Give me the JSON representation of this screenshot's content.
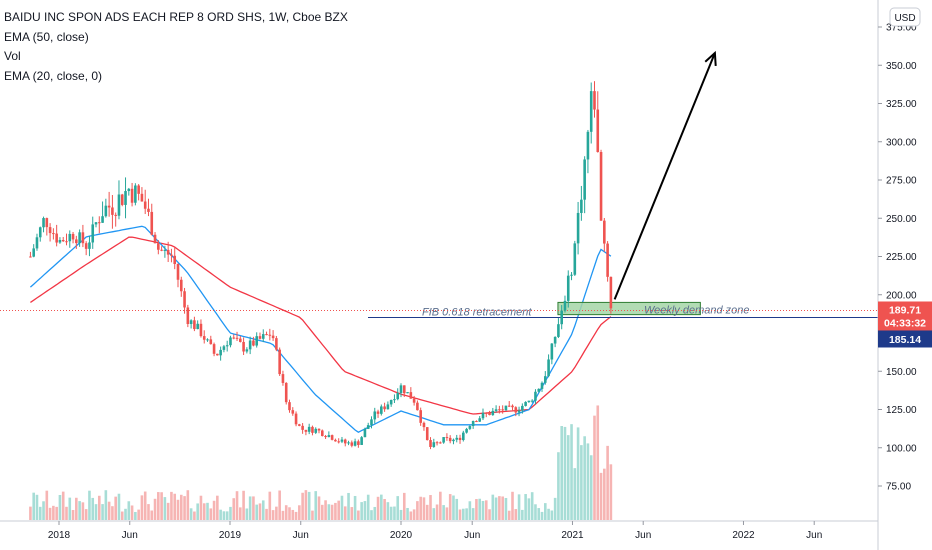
{
  "legend": {
    "symbol": "BAIDU INC SPON ADS EACH REP 8 ORD SHS, 1W, Cboe BZX",
    "ema50": "EMA (50, close)",
    "vol": "Vol",
    "ema20": "EMA (20, close, 0)"
  },
  "currency": "USD",
  "price_label": {
    "price": "189.71",
    "countdown": "04:33:32"
  },
  "level_label": "185.14",
  "annotations": {
    "fib": "FIB 0.618 retracement",
    "demand": "Weekly demand zone"
  },
  "colors": {
    "up": "#26a69a",
    "down": "#ef5350",
    "ema20": "#2196f3",
    "ema50": "#f23645",
    "level_line": "#1e3a8a",
    "zone_fill": "#a5d6a7",
    "arrow": "#000000"
  },
  "chart_data": {
    "type": "candlestick",
    "title": "BAIDU INC SPON ADS EACH REP 8 ORD SHS, 1W, Cboe BZX",
    "y_axis": {
      "ticks": [
        75,
        100,
        125,
        150,
        175,
        200,
        225,
        250,
        275,
        300,
        325,
        350,
        375
      ],
      "tick_labels": [
        "75.00",
        "100.00",
        "125.00",
        "150.00",
        "175.00",
        "200.00",
        "225.00",
        "250.00",
        "275.00",
        "300.00",
        "325.00",
        "350.00",
        "375.00"
      ],
      "range": [
        60,
        390
      ]
    },
    "x_axis": {
      "labels": [
        "2018",
        "Jun",
        "2019",
        "Jun",
        "2020",
        "Jun",
        "2021",
        "Jun",
        "2022",
        "Jun"
      ],
      "dates": [
        "2018-01",
        "2018-06",
        "2019-01",
        "2019-06",
        "2020-01",
        "2020-06",
        "2021-01",
        "2021-06",
        "2022-01",
        "2022-06"
      ]
    },
    "price_anchors": [
      [
        "2017-11",
        225
      ],
      [
        "2017-12",
        250
      ],
      [
        "2018-01",
        235
      ],
      [
        "2018-02",
        240
      ],
      [
        "2018-03",
        232
      ],
      [
        "2018-04",
        255
      ],
      [
        "2018-05",
        260
      ],
      [
        "2018-06",
        270
      ],
      [
        "2018-07",
        260
      ],
      [
        "2018-08",
        230
      ],
      [
        "2018-09",
        225
      ],
      [
        "2018-10",
        185
      ],
      [
        "2018-11",
        175
      ],
      [
        "2018-12",
        160
      ],
      [
        "2019-01",
        172
      ],
      [
        "2019-02",
        165
      ],
      [
        "2019-03",
        170
      ],
      [
        "2019-04",
        175
      ],
      [
        "2019-05",
        130
      ],
      [
        "2019-06",
        112
      ],
      [
        "2019-07",
        112
      ],
      [
        "2019-08",
        108
      ],
      [
        "2019-09",
        103
      ],
      [
        "2019-10",
        103
      ],
      [
        "2019-11",
        120
      ],
      [
        "2019-12",
        128
      ],
      [
        "2020-01",
        140
      ],
      [
        "2020-02",
        130
      ],
      [
        "2020-03",
        100
      ],
      [
        "2020-04",
        105
      ],
      [
        "2020-05",
        105
      ],
      [
        "2020-06",
        118
      ],
      [
        "2020-07",
        122
      ],
      [
        "2020-08",
        125
      ],
      [
        "2020-09",
        125
      ],
      [
        "2020-10",
        130
      ],
      [
        "2020-11",
        145
      ],
      [
        "2020-12",
        180
      ],
      [
        "2021-01",
        220
      ],
      [
        "2021-02",
        300
      ],
      [
        "2021-02-15",
        340
      ],
      [
        "2021-03",
        260
      ],
      [
        "2021-03-25",
        190
      ]
    ],
    "ema20_anchors": [
      [
        "2017-11",
        205
      ],
      [
        "2018-03",
        238
      ],
      [
        "2018-07",
        245
      ],
      [
        "2018-10",
        215
      ],
      [
        "2019-01",
        175
      ],
      [
        "2019-04",
        168
      ],
      [
        "2019-07",
        135
      ],
      [
        "2019-10",
        110
      ],
      [
        "2020-01",
        124
      ],
      [
        "2020-04",
        115
      ],
      [
        "2020-07",
        115
      ],
      [
        "2020-10",
        125
      ],
      [
        "2021-01",
        175
      ],
      [
        "2021-03",
        230
      ],
      [
        "2021-03-25",
        225
      ]
    ],
    "ema50_anchors": [
      [
        "2017-11",
        195
      ],
      [
        "2018-03",
        220
      ],
      [
        "2018-06",
        238
      ],
      [
        "2018-09",
        232
      ],
      [
        "2019-01",
        205
      ],
      [
        "2019-06",
        185
      ],
      [
        "2019-09",
        150
      ],
      [
        "2020-01",
        135
      ],
      [
        "2020-06",
        122
      ],
      [
        "2020-10",
        125
      ],
      [
        "2021-01",
        150
      ],
      [
        "2021-03",
        180
      ],
      [
        "2021-03-25",
        186
      ]
    ],
    "current_price": 189.71,
    "support_level": 185.14,
    "demand_zone": {
      "low": 187,
      "high": 195,
      "from": "2020-12",
      "to": "2021-10"
    },
    "projection_arrow": {
      "from": [
        "2021-04",
        197
      ],
      "to": [
        "2021-11",
        358
      ]
    }
  }
}
